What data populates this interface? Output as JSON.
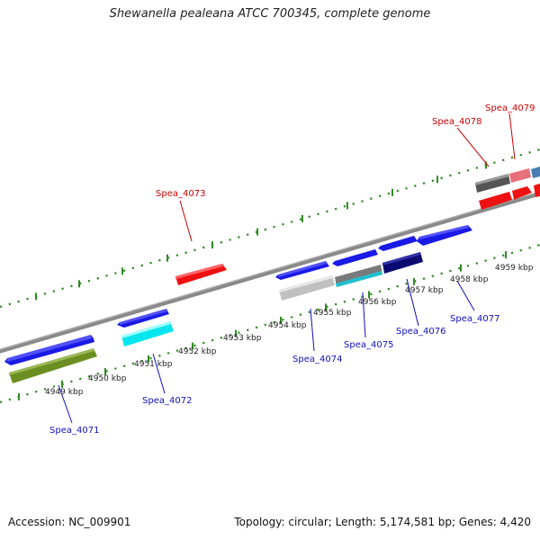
{
  "title": "Shewanella pealeana ATCC 700345, complete genome",
  "footer": {
    "accession": "Accession: NC_009901",
    "summary": "Topology: circular; Length: 5,174,581 bp; Genes: 4,420"
  },
  "colors": {
    "backbone": "#888888",
    "tick": "#2e8b22",
    "label_forward": "#cc0000",
    "label_reverse": "#1010bb"
  },
  "ticks": [
    {
      "label": "4949 kbp"
    },
    {
      "label": "4950 kbp"
    },
    {
      "label": "4951 kbp"
    },
    {
      "label": "4952 kbp"
    },
    {
      "label": "4953 kbp"
    },
    {
      "label": "4954 kbp"
    },
    {
      "label": "4955 kbp"
    },
    {
      "label": "4956 kbp"
    },
    {
      "label": "4957 kbp"
    },
    {
      "label": "4958 kbp"
    },
    {
      "label": "4959 kbp"
    }
  ],
  "gene_labels": [
    {
      "name": "Spea_4071",
      "strand": "reverse"
    },
    {
      "name": "Spea_4072",
      "strand": "reverse"
    },
    {
      "name": "Spea_4073",
      "strand": "forward"
    },
    {
      "name": "Spea_4074",
      "strand": "reverse"
    },
    {
      "name": "Spea_4075",
      "strand": "reverse"
    },
    {
      "name": "Spea_4076",
      "strand": "reverse"
    },
    {
      "name": "Spea_4077",
      "strand": "reverse"
    },
    {
      "name": "Spea_4078",
      "strand": "forward"
    },
    {
      "name": "Spea_4079",
      "strand": "forward"
    }
  ]
}
